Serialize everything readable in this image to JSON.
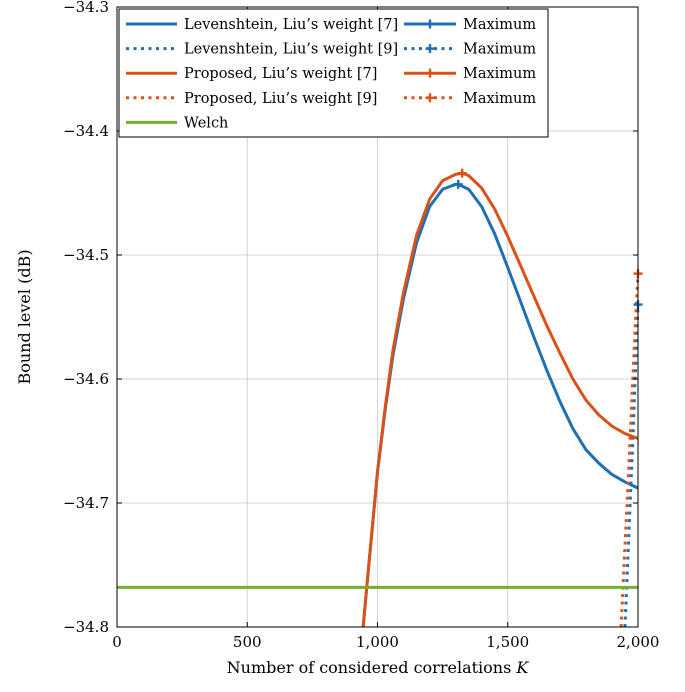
{
  "chart_data": {
    "type": "line",
    "xlabel": "Number of considered correlations K",
    "ylabel": "Bound level (dB)",
    "xlim": [
      0,
      2000
    ],
    "ylim": [
      -34.8,
      -34.3
    ],
    "x_ticks": [
      0,
      500,
      1000,
      1500,
      2000
    ],
    "x_tick_labels": [
      "0",
      "500",
      "1,000",
      "1,500",
      "2,000"
    ],
    "y_ticks": [
      -34.8,
      -34.7,
      -34.6,
      -34.5,
      -34.4,
      -34.3
    ],
    "y_tick_labels": [
      "−34.8",
      "−34.7",
      "−34.6",
      "−34.5",
      "−34.4",
      "−34.3"
    ],
    "grid": true,
    "legend_position": "top-left",
    "colors": {
      "blue": "#1f6fb2",
      "orange": "#d95319",
      "green": "#77ac30"
    },
    "series": [
      {
        "name": "Levenshtein, Liu’s weight [7]",
        "color": "#1f6fb2",
        "style": "solid",
        "x": [
          945,
          960,
          980,
          1000,
          1030,
          1060,
          1100,
          1150,
          1200,
          1250,
          1300,
          1310,
          1350,
          1400,
          1450,
          1500,
          1550,
          1600,
          1650,
          1700,
          1750,
          1800,
          1850,
          1900,
          1950,
          2000
        ],
        "y": [
          -34.8,
          -34.765,
          -34.72,
          -34.675,
          -34.624,
          -34.58,
          -34.535,
          -34.49,
          -34.461,
          -34.447,
          -34.443,
          -34.443,
          -34.447,
          -34.461,
          -34.483,
          -34.51,
          -34.538,
          -34.566,
          -34.593,
          -34.618,
          -34.64,
          -34.657,
          -34.668,
          -34.677,
          -34.683,
          -34.688
        ]
      },
      {
        "name": "Levenshtein, Liu’s weight [9]",
        "color": "#1f6fb2",
        "style": "dotted",
        "x": [
          1950,
          1960,
          1970,
          1980,
          1990,
          2000
        ],
        "y": [
          -34.8,
          -34.75,
          -34.7,
          -34.65,
          -34.595,
          -34.54
        ]
      },
      {
        "name": "Proposed, Liu’s weight [7]",
        "color": "#d95319",
        "style": "solid",
        "x": [
          945,
          960,
          980,
          1000,
          1030,
          1060,
          1100,
          1150,
          1200,
          1250,
          1300,
          1325,
          1350,
          1400,
          1450,
          1500,
          1550,
          1600,
          1650,
          1700,
          1750,
          1800,
          1850,
          1900,
          1950,
          2000
        ],
        "y": [
          -34.8,
          -34.765,
          -34.72,
          -34.675,
          -34.622,
          -34.576,
          -34.53,
          -34.484,
          -34.455,
          -34.44,
          -34.435,
          -34.434,
          -34.436,
          -34.446,
          -34.463,
          -34.485,
          -34.509,
          -34.533,
          -34.557,
          -34.579,
          -34.6,
          -34.617,
          -34.629,
          -34.638,
          -34.644,
          -34.648
        ]
      },
      {
        "name": "Proposed, Liu’s weight [9]",
        "color": "#d95319",
        "style": "dotted",
        "x": [
          1935,
          1950,
          1965,
          1980,
          1990,
          2000
        ],
        "y": [
          -34.8,
          -34.735,
          -34.67,
          -34.6,
          -34.555,
          -34.515
        ]
      },
      {
        "name": "Welch",
        "color": "#77ac30",
        "style": "solid",
        "x": [
          0,
          2000
        ],
        "y": [
          -34.768,
          -34.768
        ]
      }
    ],
    "maxima": [
      {
        "name": "Maximum",
        "color": "#1f6fb2",
        "style": "solid",
        "x": 1310,
        "y": -34.443
      },
      {
        "name": "Maximum",
        "color": "#1f6fb2",
        "style": "dotted",
        "x": 2000,
        "y": -34.54
      },
      {
        "name": "Maximum",
        "color": "#d95319",
        "style": "solid",
        "x": 1325,
        "y": -34.434
      },
      {
        "name": "Maximum",
        "color": "#d95319",
        "style": "dotted",
        "x": 2000,
        "y": -34.515
      }
    ],
    "legend": {
      "left": [
        {
          "label": "Levenshtein, Liu’s weight [7]",
          "color": "#1f6fb2",
          "style": "solid"
        },
        {
          "label": "Levenshtein, Liu’s weight [9]",
          "color": "#1f6fb2",
          "style": "dotted"
        },
        {
          "label": "Proposed, Liu’s weight [7]",
          "color": "#d95319",
          "style": "solid"
        },
        {
          "label": "Proposed, Liu’s weight [9]",
          "color": "#d95319",
          "style": "dotted"
        },
        {
          "label": "Welch",
          "color": "#77ac30",
          "style": "solid"
        }
      ],
      "right": [
        {
          "label": "Maximum",
          "color": "#1f6fb2",
          "style": "solid"
        },
        {
          "label": "Maximum",
          "color": "#1f6fb2",
          "style": "dotted"
        },
        {
          "label": "Maximum",
          "color": "#d95319",
          "style": "solid"
        },
        {
          "label": "Maximum",
          "color": "#d95319",
          "style": "dotted"
        }
      ]
    }
  }
}
